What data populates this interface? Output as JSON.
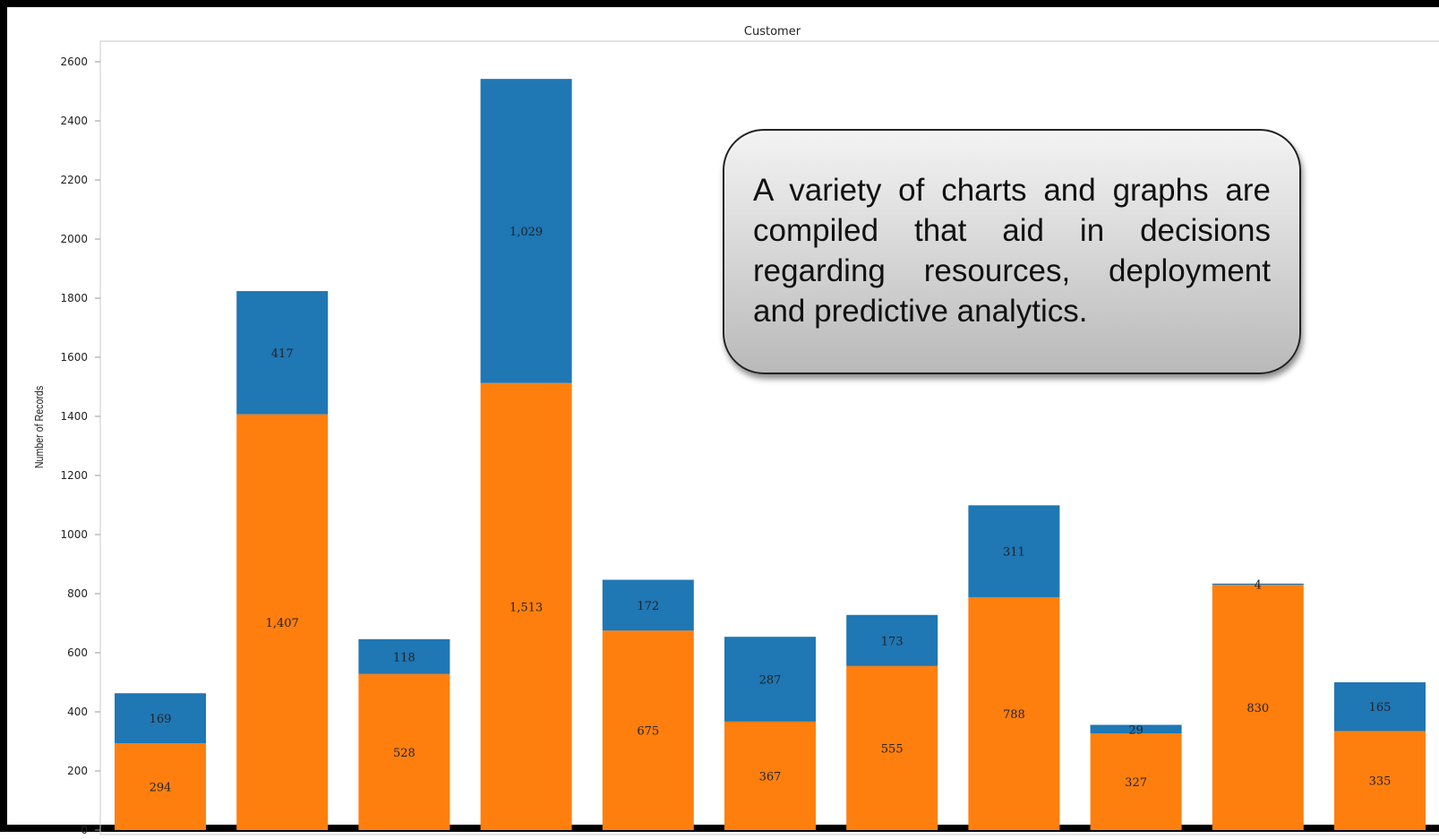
{
  "chart_data": {
    "type": "bar",
    "stacked": true,
    "title": "Customer",
    "xlabel": "",
    "ylabel": "Number of Records",
    "ylim": [
      0,
      2600
    ],
    "yticks": [
      0,
      200,
      400,
      600,
      800,
      1000,
      1200,
      1400,
      1600,
      1800,
      2000,
      2200,
      2400,
      2600
    ],
    "grid": false,
    "categories": [
      "",
      "",
      "",
      "",
      "",
      "",
      "",
      "",
      "",
      "",
      ""
    ],
    "series": [
      {
        "color": "#ff7f0e",
        "values": [
          294,
          1407,
          528,
          1513,
          675,
          367,
          555,
          788,
          327,
          830,
          335
        ],
        "labels": [
          "294",
          "1,407",
          "528",
          "1,513",
          "675",
          "367",
          "555",
          "788",
          "327",
          "830",
          "335"
        ]
      },
      {
        "color": "#1f77b4",
        "values": [
          169,
          417,
          118,
          1029,
          172,
          287,
          173,
          311,
          29,
          4,
          165
        ],
        "labels": [
          "169",
          "417",
          "118",
          "1,029",
          "172",
          "287",
          "173",
          "311",
          "29",
          "4",
          "165"
        ]
      }
    ]
  },
  "callout": {
    "text": "A variety of charts and graphs are compiled that aid in decisions regarding resources, deployment and predictive analytics."
  }
}
